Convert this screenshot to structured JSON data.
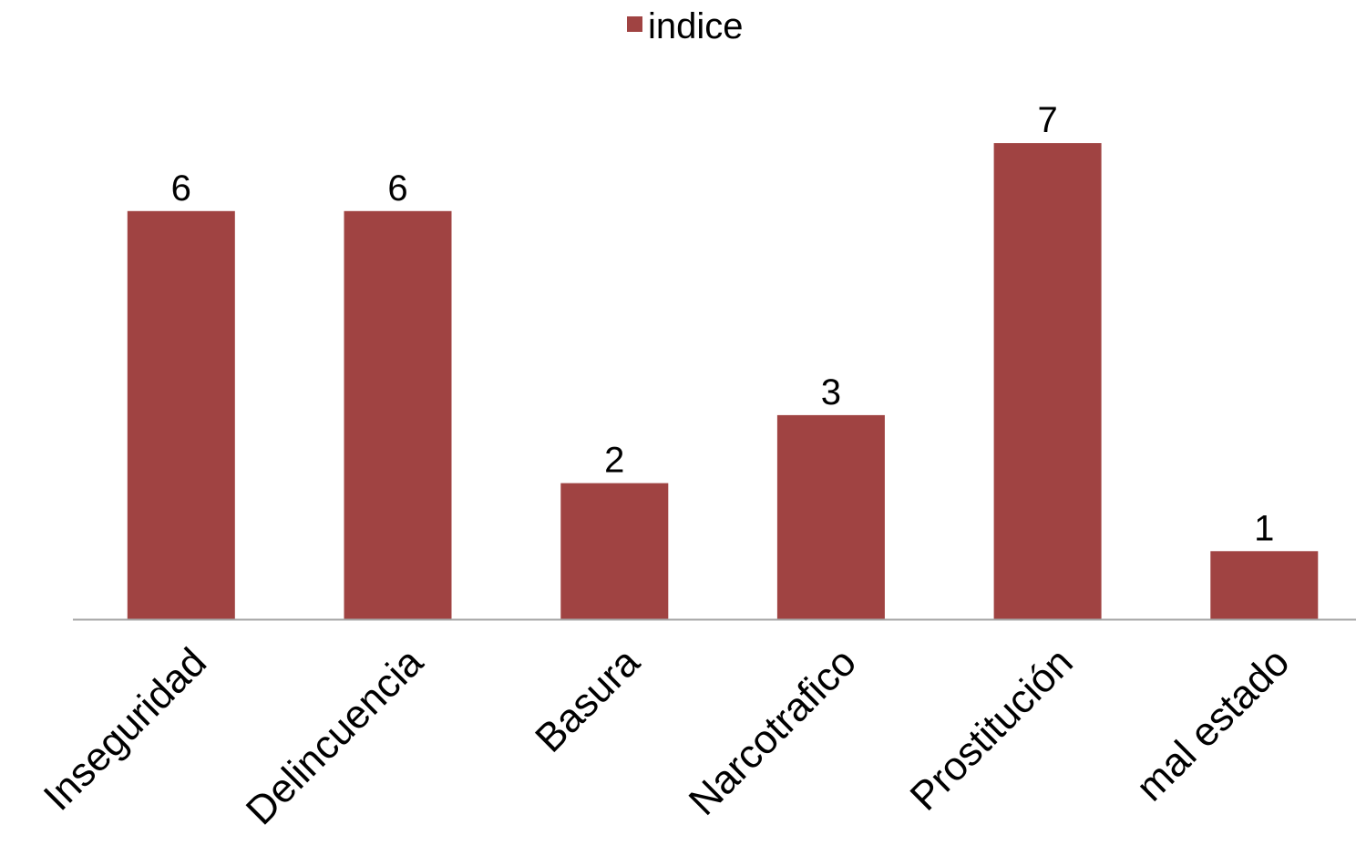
{
  "chart_data": {
    "type": "bar",
    "categories": [
      "Inseguridad",
      "Delincuencia",
      "Basura",
      "Narcotrafico",
      "Prostitución",
      "mal estado"
    ],
    "series": [
      {
        "name": "indice",
        "values": [
          6,
          6,
          2,
          3,
          7,
          1
        ]
      }
    ],
    "data_labels": [
      "6",
      "6",
      "2",
      "3",
      "7",
      "1"
    ],
    "legend": {
      "position": "top",
      "labels": [
        "indice"
      ]
    },
    "ylim": [
      0,
      7
    ],
    "grid": false,
    "colors": {
      "bar": "#A04342",
      "axis": "#A6A6A6",
      "text": "#000000"
    }
  }
}
